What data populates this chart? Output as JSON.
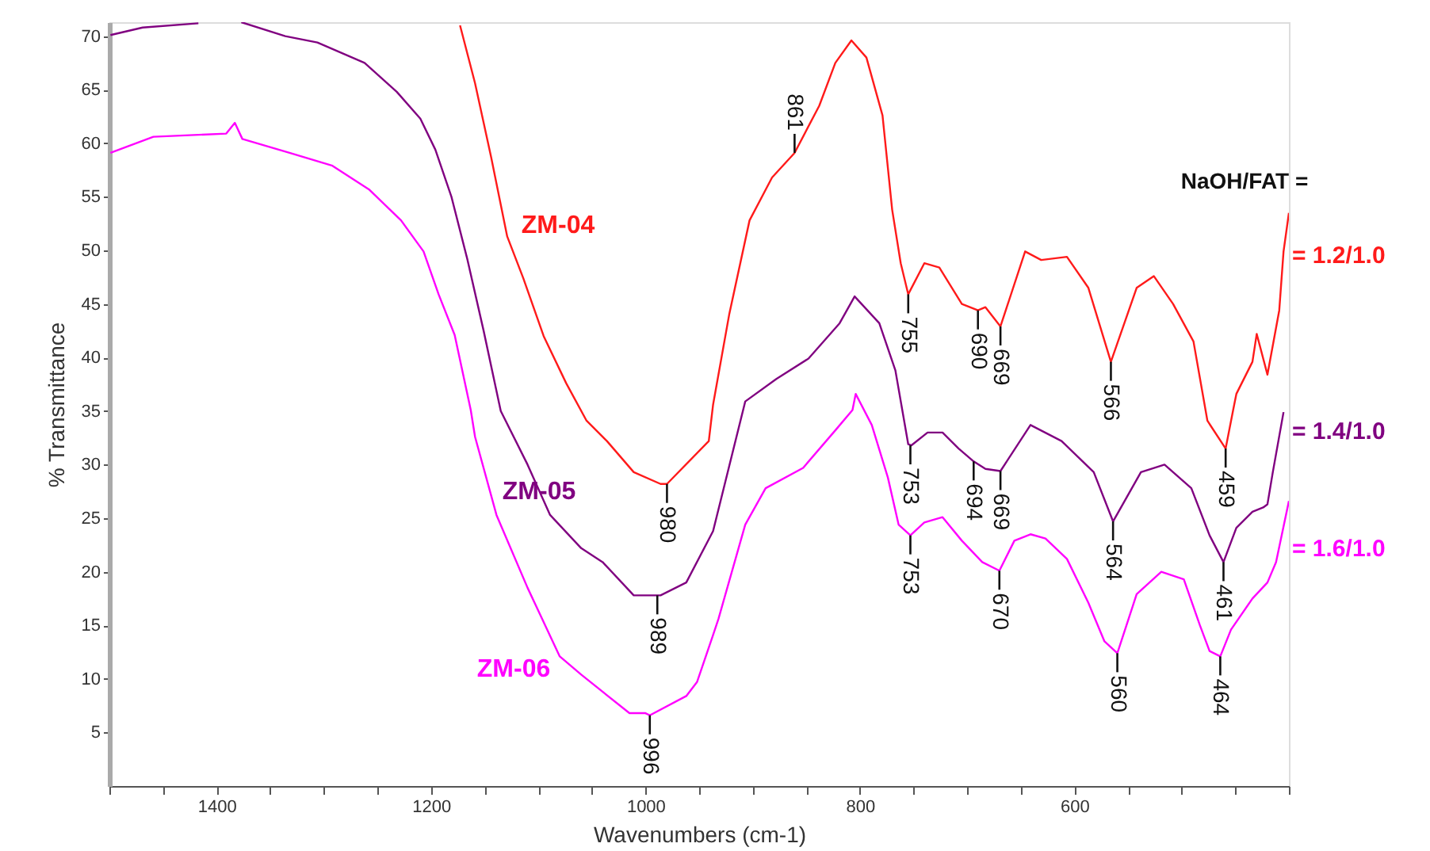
{
  "chart_data": {
    "type": "line",
    "xlabel": "Wavenumbers (cm-1)",
    "ylabel": "% Transmittance",
    "xlim": [
      1500,
      400
    ],
    "ylim": [
      0,
      71.3
    ],
    "xticks": [
      {
        "value": 1500,
        "label": null
      },
      {
        "value": 1450,
        "label": null
      },
      1400,
      {
        "value": 1350,
        "label": null
      },
      {
        "value": 1300,
        "label": null
      },
      {
        "value": 1250,
        "label": null
      },
      1200,
      {
        "value": 1150,
        "label": null
      },
      {
        "value": 1100,
        "label": null
      },
      {
        "value": 1050,
        "label": null
      },
      1000,
      {
        "value": 950,
        "label": null
      },
      {
        "value": 900,
        "label": null
      },
      {
        "value": 850,
        "label": null
      },
      800,
      {
        "value": 750,
        "label": null
      },
      {
        "value": 700,
        "label": null
      },
      {
        "value": 650,
        "label": null
      },
      600,
      {
        "value": 550,
        "label": null
      },
      {
        "value": 500,
        "label": null
      },
      {
        "value": 450,
        "label": null
      },
      {
        "value": 400,
        "label": null
      }
    ],
    "yticks": [
      5,
      10,
      15,
      20,
      25,
      30,
      35,
      40,
      45,
      50,
      55,
      60,
      65,
      70
    ],
    "grid": false,
    "line_style": "solid",
    "marker": "none",
    "series": [
      {
        "name": "ZM-04",
        "color": "#ff1a1a",
        "x": [
          1173,
          1159,
          1144,
          1129,
          1114,
          1095,
          1074,
          1055,
          1036,
          1011,
          986,
          980,
          941,
          937,
          922,
          903,
          882,
          861,
          838,
          823,
          808,
          794,
          779,
          770,
          762,
          755,
          740,
          726,
          705,
          690,
          683,
          669,
          646,
          631,
          607,
          587,
          566,
          542,
          526,
          508,
          489,
          476,
          459,
          452,
          449,
          434,
          430,
          420,
          409,
          405,
          400
        ],
        "values": [
          71.0,
          65.6,
          58.7,
          51.3,
          47.4,
          42.0,
          37.6,
          34.1,
          32.2,
          29.3,
          28.2,
          28.2,
          32.2,
          35.6,
          44.0,
          52.8,
          56.8,
          59.1,
          63.5,
          67.5,
          69.6,
          68.0,
          62.6,
          53.8,
          48.8,
          45.9,
          48.8,
          48.4,
          45.0,
          44.4,
          44.7,
          42.9,
          49.9,
          49.1,
          49.4,
          46.5,
          39.6,
          46.5,
          47.6,
          45.0,
          41.5,
          34.1,
          31.5,
          35.1,
          36.6,
          39.6,
          42.2,
          38.4,
          44.4,
          49.9,
          53.5
        ]
      },
      {
        "name": "ZM-05",
        "color": "#800080",
        "x": [
          1499,
          1469,
          1417,
          1395,
          1377,
          1336,
          1306,
          1262,
          1232,
          1210,
          1196,
          1181,
          1166,
          1151,
          1135,
          1110,
          1089,
          1060,
          1040,
          1011,
          986,
          962,
          937,
          907,
          878,
          848,
          819,
          805,
          782,
          767,
          755,
          752,
          737,
          723,
          708,
          694,
          683,
          669,
          641,
          612,
          582,
          564,
          538,
          516,
          491,
          474,
          461,
          449,
          434,
          424,
          420,
          415,
          405
        ],
        "values": [
          70.1,
          70.8,
          71.2,
          null,
          71.3,
          70.0,
          69.4,
          67.5,
          64.8,
          62.3,
          59.4,
          55.0,
          49.1,
          42.5,
          35.0,
          30.0,
          25.3,
          22.2,
          20.9,
          17.8,
          17.8,
          19.0,
          23.8,
          35.9,
          38.0,
          39.9,
          43.2,
          45.7,
          43.2,
          38.8,
          31.9,
          31.8,
          33.0,
          33.0,
          31.5,
          30.3,
          29.6,
          29.4,
          33.7,
          32.2,
          29.3,
          24.7,
          29.3,
          30.0,
          27.8,
          23.4,
          20.9,
          24.1,
          25.6,
          26.0,
          26.3,
          29.3,
          34.9
        ]
      },
      {
        "name": "ZM-06",
        "color": "#ff00ff",
        "x": [
          1499,
          1459,
          1391,
          1383,
          1376,
          1332,
          1292,
          1258,
          1228,
          1207,
          1193,
          1178,
          1163,
          1159,
          1139,
          1110,
          1080,
          1060,
          1015,
          1000,
          996,
          962,
          952,
          937,
          932,
          907,
          888,
          853,
          823,
          807,
          804,
          789,
          774,
          764,
          753,
          740,
          723,
          705,
          686,
          670,
          656,
          641,
          627,
          607,
          587,
          572,
          560,
          542,
          519,
          498,
          483,
          474,
          464,
          454,
          434,
          420,
          412,
          400
        ],
        "values": [
          59.1,
          60.6,
          60.9,
          61.9,
          60.4,
          59.1,
          57.9,
          55.7,
          52.8,
          49.9,
          45.9,
          42.1,
          35.1,
          32.6,
          25.3,
          18.5,
          12.1,
          10.4,
          6.8,
          6.8,
          6.6,
          8.4,
          9.7,
          14.1,
          15.6,
          24.4,
          27.8,
          29.7,
          33.2,
          35.1,
          36.6,
          33.7,
          28.8,
          24.4,
          23.4,
          24.6,
          25.1,
          22.9,
          20.9,
          20.1,
          22.9,
          23.5,
          23.1,
          21.2,
          17.1,
          13.5,
          12.4,
          17.9,
          20.0,
          19.3,
          15.0,
          12.6,
          12.1,
          14.6,
          17.5,
          19.0,
          20.9,
          26.6
        ]
      }
    ],
    "annotations": [
      "NaOH/FAT =",
      "= 1.2/1.0",
      "= 1.4/1.0",
      "= 1.6/1.0",
      {
        "text": "980",
        "x": 980,
        "y": 28.2
      },
      {
        "text": "861",
        "x": 861,
        "y": 59.1
      },
      {
        "text": "755",
        "x": 755,
        "y": 45.9
      },
      {
        "text": "690",
        "x": 690,
        "y": 44.4
      },
      {
        "text": "669",
        "x": 669,
        "y": 42.9
      },
      {
        "text": "566",
        "x": 566,
        "y": 39.6
      },
      {
        "text": "459",
        "x": 459,
        "y": 31.5
      },
      {
        "text": "989",
        "x": 989,
        "y": 17.8
      },
      {
        "text": "753",
        "x": 753,
        "y": 31.8
      },
      {
        "text": "694",
        "x": 694,
        "y": 30.3
      },
      {
        "text": "669",
        "x": 669,
        "y": 29.4
      },
      {
        "text": "564",
        "x": 564,
        "y": 24.7
      },
      {
        "text": "461",
        "x": 461,
        "y": 20.9
      },
      {
        "text": "996",
        "x": 996,
        "y": 6.6
      },
      {
        "text": "753",
        "x": 753,
        "y": 23.4
      },
      {
        "text": "670",
        "x": 670,
        "y": 20.1
      },
      {
        "text": "560",
        "x": 560,
        "y": 12.4
      },
      {
        "text": "464",
        "x": 464,
        "y": 12.1
      }
    ]
  }
}
